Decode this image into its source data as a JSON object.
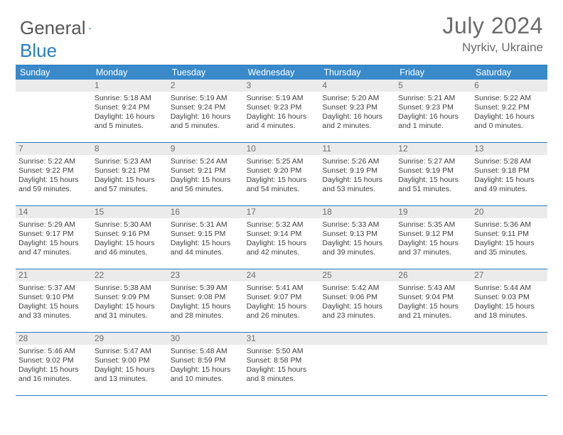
{
  "brand": {
    "part1": "General",
    "part2": "Blue"
  },
  "title": "July 2024",
  "location": "Nyrkiv, Ukraine",
  "colors": {
    "accent": "#3a8aca",
    "rule": "#2a7ac0",
    "day_bg": "#ebebeb",
    "text": "#424242"
  },
  "daysOfWeek": [
    "Sunday",
    "Monday",
    "Tuesday",
    "Wednesday",
    "Thursday",
    "Friday",
    "Saturday"
  ],
  "weeks": [
    [
      null,
      {
        "n": "1",
        "sr": "5:18 AM",
        "ss": "9:24 PM",
        "dl": "16 hours and 5 minutes."
      },
      {
        "n": "2",
        "sr": "5:19 AM",
        "ss": "9:24 PM",
        "dl": "16 hours and 5 minutes."
      },
      {
        "n": "3",
        "sr": "5:19 AM",
        "ss": "9:23 PM",
        "dl": "16 hours and 4 minutes."
      },
      {
        "n": "4",
        "sr": "5:20 AM",
        "ss": "9:23 PM",
        "dl": "16 hours and 2 minutes."
      },
      {
        "n": "5",
        "sr": "5:21 AM",
        "ss": "9:23 PM",
        "dl": "16 hours and 1 minute."
      },
      {
        "n": "6",
        "sr": "5:22 AM",
        "ss": "9:22 PM",
        "dl": "16 hours and 0 minutes."
      }
    ],
    [
      {
        "n": "7",
        "sr": "5:22 AM",
        "ss": "9:22 PM",
        "dl": "15 hours and 59 minutes."
      },
      {
        "n": "8",
        "sr": "5:23 AM",
        "ss": "9:21 PM",
        "dl": "15 hours and 57 minutes."
      },
      {
        "n": "9",
        "sr": "5:24 AM",
        "ss": "9:21 PM",
        "dl": "15 hours and 56 minutes."
      },
      {
        "n": "10",
        "sr": "5:25 AM",
        "ss": "9:20 PM",
        "dl": "15 hours and 54 minutes."
      },
      {
        "n": "11",
        "sr": "5:26 AM",
        "ss": "9:19 PM",
        "dl": "15 hours and 53 minutes."
      },
      {
        "n": "12",
        "sr": "5:27 AM",
        "ss": "9:19 PM",
        "dl": "15 hours and 51 minutes."
      },
      {
        "n": "13",
        "sr": "5:28 AM",
        "ss": "9:18 PM",
        "dl": "15 hours and 49 minutes."
      }
    ],
    [
      {
        "n": "14",
        "sr": "5:29 AM",
        "ss": "9:17 PM",
        "dl": "15 hours and 47 minutes."
      },
      {
        "n": "15",
        "sr": "5:30 AM",
        "ss": "9:16 PM",
        "dl": "15 hours and 46 minutes."
      },
      {
        "n": "16",
        "sr": "5:31 AM",
        "ss": "9:15 PM",
        "dl": "15 hours and 44 minutes."
      },
      {
        "n": "17",
        "sr": "5:32 AM",
        "ss": "9:14 PM",
        "dl": "15 hours and 42 minutes."
      },
      {
        "n": "18",
        "sr": "5:33 AM",
        "ss": "9:13 PM",
        "dl": "15 hours and 39 minutes."
      },
      {
        "n": "19",
        "sr": "5:35 AM",
        "ss": "9:12 PM",
        "dl": "15 hours and 37 minutes."
      },
      {
        "n": "20",
        "sr": "5:36 AM",
        "ss": "9:11 PM",
        "dl": "15 hours and 35 minutes."
      }
    ],
    [
      {
        "n": "21",
        "sr": "5:37 AM",
        "ss": "9:10 PM",
        "dl": "15 hours and 33 minutes."
      },
      {
        "n": "22",
        "sr": "5:38 AM",
        "ss": "9:09 PM",
        "dl": "15 hours and 31 minutes."
      },
      {
        "n": "23",
        "sr": "5:39 AM",
        "ss": "9:08 PM",
        "dl": "15 hours and 28 minutes."
      },
      {
        "n": "24",
        "sr": "5:41 AM",
        "ss": "9:07 PM",
        "dl": "15 hours and 26 minutes."
      },
      {
        "n": "25",
        "sr": "5:42 AM",
        "ss": "9:06 PM",
        "dl": "15 hours and 23 minutes."
      },
      {
        "n": "26",
        "sr": "5:43 AM",
        "ss": "9:04 PM",
        "dl": "15 hours and 21 minutes."
      },
      {
        "n": "27",
        "sr": "5:44 AM",
        "ss": "9:03 PM",
        "dl": "15 hours and 18 minutes."
      }
    ],
    [
      {
        "n": "28",
        "sr": "5:46 AM",
        "ss": "9:02 PM",
        "dl": "15 hours and 16 minutes."
      },
      {
        "n": "29",
        "sr": "5:47 AM",
        "ss": "9:00 PM",
        "dl": "15 hours and 13 minutes."
      },
      {
        "n": "30",
        "sr": "5:48 AM",
        "ss": "8:59 PM",
        "dl": "15 hours and 10 minutes."
      },
      {
        "n": "31",
        "sr": "5:50 AM",
        "ss": "8:58 PM",
        "dl": "15 hours and 8 minutes."
      },
      null,
      null,
      null
    ]
  ],
  "labels": {
    "sunrise": "Sunrise:",
    "sunset": "Sunset:",
    "daylight": "Daylight:"
  }
}
